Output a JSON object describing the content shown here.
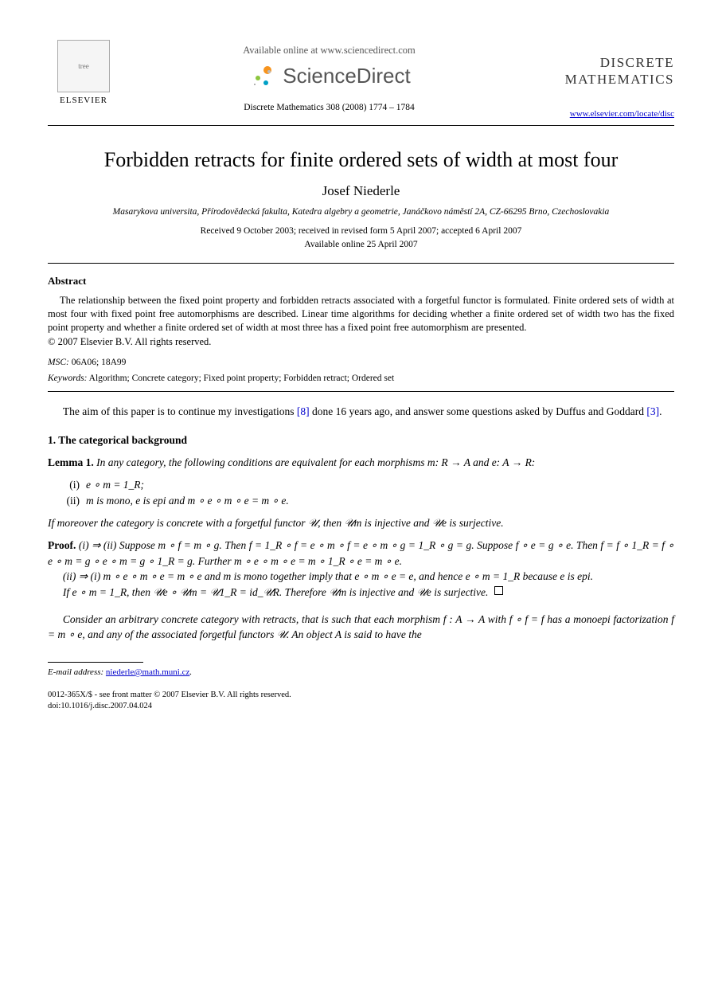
{
  "header": {
    "available_online": "Available online at www.sciencedirect.com",
    "sciencedirect": "ScienceDirect",
    "citation": "Discrete Mathematics 308 (2008) 1774 – 1784",
    "elsevier_label": "ELSEVIER",
    "journal_line1": "DISCRETE",
    "journal_line2": "MATHEMATICS",
    "journal_url": "www.elsevier.com/locate/disc"
  },
  "article": {
    "title": "Forbidden retracts for finite ordered sets of width at most four",
    "author": "Josef Niederle",
    "affiliation": "Masarykova universita, Přírodovědecká fakulta, Katedra algebry a geometrie, Janáčkovo náměstí 2A, CZ-66295 Brno, Czechoslovakia",
    "received": "Received 9 October 2003; received in revised form 5 April 2007; accepted 6 April 2007",
    "available": "Available online 25 April 2007"
  },
  "abstract": {
    "heading": "Abstract",
    "body": "The relationship between the fixed point property and forbidden retracts associated with a forgetful functor is formulated. Finite ordered sets of width at most four with fixed point free automorphisms are described. Linear time algorithms for deciding whether a finite ordered set of width two has the fixed point property and whether a finite ordered set of width at most three has a fixed point free automorphism are presented.",
    "copyright": "© 2007 Elsevier B.V. All rights reserved.",
    "msc_label": "MSC:",
    "msc": " 06A06; 18A99",
    "keywords_label": "Keywords:",
    "keywords": " Algorithm; Concrete category; Fixed point property; Forbidden retract; Ordered set"
  },
  "intro": {
    "p1a": "The   aim of this paper is to continue my investigations ",
    "ref8": "[8]",
    "p1b": " done 16 years ago, and answer some questions asked by Duffus and Goddard ",
    "ref3": "[3]",
    "p1c": "."
  },
  "section1": {
    "heading": "1.  The categorical background",
    "lemma_label": "Lemma 1.",
    "lemma_body": "  In any category, the following conditions are equivalent for each morphisms m: R → A and e: A → R:",
    "item_i_num": "(i)",
    "item_i": "e ∘ m = 1_R;",
    "item_ii_num": "(ii)",
    "item_ii": "m is mono, e is epi and m ∘ e ∘ m ∘ e = m ∘ e.",
    "lemma_tail": "If moreover the category is concrete with a forgetful functor 𝒰, then 𝒰m is injective and 𝒰e is surjective.",
    "proof_label": "Proof.",
    "proof_1": "  (i) ⇒ (ii) Suppose m ∘ f = m ∘ g. Then f = 1_R ∘ f = e ∘ m ∘ f = e ∘ m ∘ g = 1_R ∘ g = g. Suppose f ∘ e = g ∘ e. Then f = f ∘ 1_R = f ∘ e ∘ m = g ∘ e ∘ m = g ∘ 1_R = g. Further m ∘ e ∘ m ∘ e = m ∘ 1_R ∘ e = m ∘ e.",
    "proof_2": "(ii) ⇒ (i) m ∘ e ∘ m ∘ e = m ∘ e and m is mono together imply that e ∘ m ∘ e = e, and hence e ∘ m = 1_R because e is epi.",
    "proof_3": "If e ∘ m = 1_R, then 𝒰e ∘ 𝒰m = 𝒰1_R = id_𝒰R. Therefore 𝒰m is injective and 𝒰e is surjective.",
    "after_proof": "Consider an arbitrary concrete category with retracts, that is such that each morphism f : A → A with f ∘ f = f has a monoepi factorization f = m ∘ e, and any of the associated forgetful functors 𝒰. An object A is said to have the"
  },
  "footer": {
    "email_label": "E-mail address:",
    "email": "niederle@math.muni.cz",
    "email_tail": ".",
    "issn": "0012-365X/$ - see front matter © 2007 Elsevier B.V. All rights reserved.",
    "doi": "doi:10.1016/j.disc.2007.04.024"
  },
  "colors": {
    "link": "#0000cc",
    "text": "#000000",
    "muted": "#555555"
  }
}
